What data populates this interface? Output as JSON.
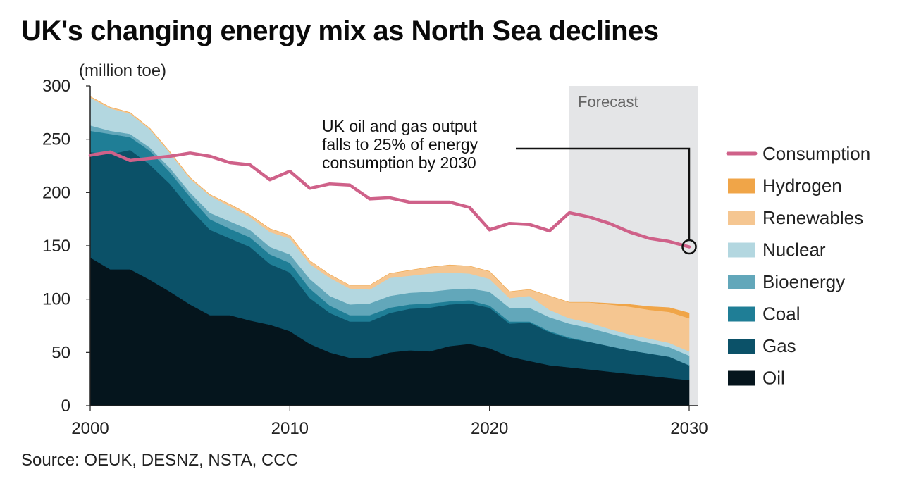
{
  "chart_data": {
    "type": "area",
    "title": "UK's changing energy mix as North Sea declines",
    "unit_label": "(million toe)",
    "source": "Source: OEUK, DESNZ, NSTA, CCC",
    "forecast_label": "Forecast",
    "forecast_start": 2024,
    "annotation": {
      "lines": [
        "UK oil and gas output",
        "falls to 25% of energy",
        "consumption by 2030"
      ],
      "point_year": 2030,
      "point_value": 149
    },
    "xlim": [
      2000,
      2030
    ],
    "ylim": [
      0,
      300
    ],
    "x_ticks": [
      2000,
      2010,
      2020,
      2030
    ],
    "x_tick_labels": [
      "2000",
      "2010",
      "2020",
      "2030"
    ],
    "y_ticks": [
      0,
      50,
      100,
      150,
      200,
      250,
      300
    ],
    "y_tick_labels": [
      "0",
      "50",
      "100",
      "150",
      "200",
      "250",
      "300"
    ],
    "x": [
      2000,
      2001,
      2002,
      2003,
      2004,
      2005,
      2006,
      2007,
      2008,
      2009,
      2010,
      2011,
      2012,
      2013,
      2014,
      2015,
      2016,
      2017,
      2018,
      2019,
      2020,
      2021,
      2022,
      2023,
      2024,
      2025,
      2026,
      2027,
      2028,
      2029,
      2030
    ],
    "stack_order": [
      "Oil",
      "Gas",
      "Coal",
      "Bioenergy",
      "Nuclear",
      "Renewables",
      "Hydrogen"
    ],
    "series": [
      {
        "name": "Oil",
        "color": "#05151d",
        "values": [
          139,
          128,
          128,
          118,
          107,
          95,
          85,
          85,
          80,
          76,
          70,
          58,
          50,
          45,
          45,
          50,
          52,
          51,
          56,
          58,
          54,
          46,
          42,
          38,
          36,
          34,
          32,
          30,
          28,
          26,
          24
        ]
      },
      {
        "name": "Gas",
        "color": "#0b5168",
        "values": [
          99,
          108,
          112,
          108,
          101,
          90,
          80,
          72,
          69,
          57,
          55,
          43,
          37,
          34,
          34,
          37,
          39,
          41,
          39,
          38,
          38,
          31,
          36,
          31,
          27,
          26,
          24,
          22,
          21,
          20,
          14
        ]
      },
      {
        "name": "Coal",
        "color": "#1f7e96",
        "values": [
          20,
          19,
          12,
          13,
          11,
          11,
          10,
          9,
          9,
          9,
          9,
          9,
          7,
          6,
          6,
          5,
          4,
          4,
          3,
          3,
          2,
          2,
          1,
          1,
          1,
          0,
          0,
          0,
          0,
          0,
          0
        ]
      },
      {
        "name": "Bioenergy",
        "color": "#62a7ba",
        "values": [
          5,
          3,
          3,
          3,
          4,
          4,
          6,
          7,
          7,
          7,
          8,
          9,
          9,
          10,
          11,
          11,
          11,
          11,
          11,
          11,
          13,
          13,
          13,
          13,
          13,
          13,
          12,
          11,
          10,
          9,
          9
        ]
      },
      {
        "name": "Nuclear",
        "color": "#b3d7e0",
        "values": [
          26,
          21,
          19,
          17,
          14,
          13,
          16,
          14,
          12,
          14,
          15,
          14,
          17,
          15,
          13,
          17,
          16,
          17,
          16,
          14,
          12,
          9,
          11,
          7,
          5,
          5,
          4,
          4,
          4,
          4,
          4
        ]
      },
      {
        "name": "Renewables",
        "color": "#f5c691",
        "values": [
          1,
          1,
          1,
          1,
          1,
          1,
          1,
          2,
          2,
          3,
          3,
          3,
          3,
          3,
          4,
          4,
          5,
          6,
          7,
          7,
          7,
          6,
          6,
          13,
          15,
          19,
          23,
          26,
          27,
          29,
          31
        ]
      },
      {
        "name": "Hydrogen",
        "color": "#f0a548",
        "values": [
          0,
          0,
          0,
          0,
          0,
          0,
          0,
          0,
          0,
          0,
          0,
          0,
          0,
          0,
          0,
          0,
          0,
          0,
          0,
          0,
          0,
          0,
          0,
          0,
          0,
          0,
          1,
          2,
          3,
          4,
          5
        ]
      }
    ],
    "line_series": {
      "name": "Consumption",
      "color": "#cf6189",
      "values": [
        235,
        238,
        230,
        232,
        234,
        237,
        234,
        228,
        226,
        212,
        220,
        204,
        208,
        207,
        194,
        195,
        191,
        191,
        191,
        186,
        165,
        171,
        170,
        164,
        181,
        177,
        171,
        163,
        157,
        154,
        149
      ]
    },
    "legend": [
      {
        "label": "Consumption",
        "color": "#cf6189",
        "kind": "line"
      },
      {
        "label": "Hydrogen",
        "color": "#f0a548",
        "kind": "box"
      },
      {
        "label": "Renewables",
        "color": "#f5c691",
        "kind": "box"
      },
      {
        "label": "Nuclear",
        "color": "#b3d7e0",
        "kind": "box"
      },
      {
        "label": "Bioenergy",
        "color": "#62a7ba",
        "kind": "box"
      },
      {
        "label": "Coal",
        "color": "#1f7e96",
        "kind": "box"
      },
      {
        "label": "Gas",
        "color": "#0b5168",
        "kind": "box"
      },
      {
        "label": "Oil",
        "color": "#05151d",
        "kind": "box"
      }
    ],
    "legend_position": "right",
    "grid": false
  }
}
